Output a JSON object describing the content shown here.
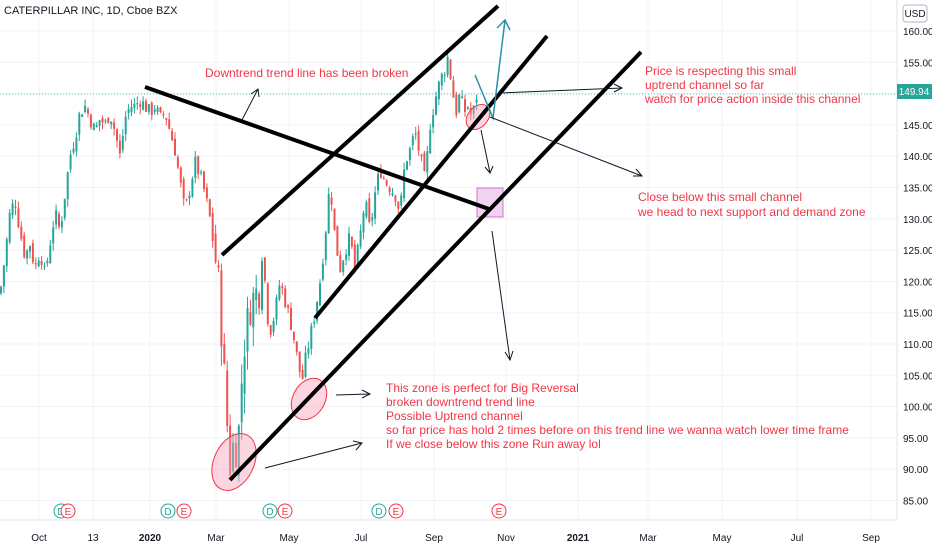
{
  "header": {
    "title": "CATERPILLAR INC, 1D, Cboe BZX",
    "currency": "USD"
  },
  "price_tag": "149.94",
  "event_badges": [
    "D",
    "E",
    "E",
    "D",
    "E",
    "D",
    "E",
    "D",
    "E",
    "E"
  ],
  "annotations": [
    {
      "id": "trend-broken",
      "lines": [
        "Downtrend trend line has been broken"
      ]
    },
    {
      "id": "respecting",
      "lines": [
        "Price is respecting this small",
        "uptrend channel so far",
        "watch for price action inside this channel"
      ]
    },
    {
      "id": "close-below",
      "lines": [
        "Close below this small channel",
        "we head to next support and demand zone"
      ]
    },
    {
      "id": "reversal",
      "lines": [
        "This zone is perfect for Big Reversal",
        "broken downtrend trend line",
        "Possible Uptrend channel",
        "so far price has hold 2 times before on this trend line we wanna watch lower time frame",
        "If we close below this zone Run away lol"
      ]
    }
  ],
  "colors": {
    "up": "#26a69a",
    "down": "#ef5350",
    "annotation": "#f23645",
    "trendline": "#000000",
    "price_tag": "#26a69a",
    "zone_fill": "#f7a1b8",
    "projection": "#2a8fa8"
  },
  "chart_data": {
    "type": "candlestick",
    "title": "CATERPILLAR INC, 1D, Cboe BZX",
    "ylim": [
      82,
      163
    ],
    "y_ticks": [
      85,
      90,
      95,
      100,
      105,
      110,
      115,
      120,
      125,
      130,
      135,
      140,
      145,
      150,
      155,
      160
    ],
    "x_ticks": [
      "Oct",
      "13",
      "2020",
      "Mar",
      "May",
      "Jul",
      "Sep",
      "Nov",
      "2021",
      "Mar",
      "May",
      "Jul",
      "Sep"
    ],
    "last_price": 149.94,
    "close_path": [
      [
        0,
        118
      ],
      [
        5,
        124
      ],
      [
        10,
        131
      ],
      [
        15,
        133
      ],
      [
        20,
        128
      ],
      [
        25,
        124
      ],
      [
        30,
        126
      ],
      [
        35,
        122
      ],
      [
        40,
        125
      ],
      [
        45,
        121
      ],
      [
        50,
        126
      ],
      [
        55,
        131
      ],
      [
        60,
        128
      ],
      [
        65,
        134
      ],
      [
        70,
        140
      ],
      [
        75,
        143
      ],
      [
        80,
        147
      ],
      [
        85,
        148
      ],
      [
        90,
        146
      ],
      [
        95,
        144
      ],
      [
        100,
        146
      ],
      [
        105,
        145
      ],
      [
        110,
        147
      ],
      [
        115,
        144
      ],
      [
        120,
        140
      ],
      [
        125,
        146
      ],
      [
        130,
        148
      ],
      [
        135,
        148
      ],
      [
        140,
        149
      ],
      [
        145,
        148
      ],
      [
        150,
        147
      ],
      [
        155,
        148
      ],
      [
        160,
        146
      ],
      [
        165,
        147
      ],
      [
        170,
        144
      ],
      [
        175,
        141
      ],
      [
        180,
        136
      ],
      [
        185,
        131
      ],
      [
        190,
        135
      ],
      [
        195,
        139
      ],
      [
        200,
        137
      ],
      [
        205,
        134
      ],
      [
        210,
        130
      ],
      [
        215,
        124
      ],
      [
        218,
        121
      ],
      [
        222,
        111
      ],
      [
        225,
        103
      ],
      [
        228,
        95
      ],
      [
        231,
        89
      ],
      [
        234,
        96
      ],
      [
        237,
        92
      ],
      [
        240,
        99
      ],
      [
        243,
        108
      ],
      [
        246,
        112
      ],
      [
        250,
        116
      ],
      [
        255,
        118
      ],
      [
        260,
        119
      ],
      [
        263,
        127
      ],
      [
        266,
        116
      ],
      [
        270,
        112
      ],
      [
        275,
        115
      ],
      [
        280,
        120
      ],
      [
        285,
        117
      ],
      [
        290,
        114
      ],
      [
        295,
        110
      ],
      [
        298,
        107
      ],
      [
        302,
        104
      ],
      [
        306,
        108
      ],
      [
        310,
        111
      ],
      [
        315,
        115
      ],
      [
        320,
        120
      ],
      [
        325,
        127
      ],
      [
        330,
        136
      ],
      [
        335,
        127
      ],
      [
        340,
        122
      ],
      [
        345,
        125
      ],
      [
        350,
        127
      ],
      [
        355,
        122
      ],
      [
        360,
        127
      ],
      [
        365,
        133
      ],
      [
        370,
        128
      ],
      [
        375,
        134
      ],
      [
        380,
        138
      ],
      [
        385,
        136
      ],
      [
        390,
        135
      ],
      [
        395,
        134
      ],
      [
        400,
        131
      ],
      [
        405,
        139
      ],
      [
        410,
        141
      ],
      [
        415,
        144
      ],
      [
        420,
        140
      ],
      [
        425,
        136
      ],
      [
        430,
        145
      ],
      [
        435,
        149
      ],
      [
        440,
        152
      ],
      [
        445,
        154
      ],
      [
        448,
        156
      ],
      [
        452,
        151
      ],
      [
        456,
        147
      ],
      [
        460,
        150
      ],
      [
        464,
        147
      ],
      [
        468,
        148
      ],
      [
        472,
        146
      ],
      [
        477,
        149.9
      ]
    ],
    "event_badges": [
      "D",
      "E",
      "E",
      "D",
      "E",
      "D",
      "E",
      "D",
      "E",
      "E"
    ]
  }
}
